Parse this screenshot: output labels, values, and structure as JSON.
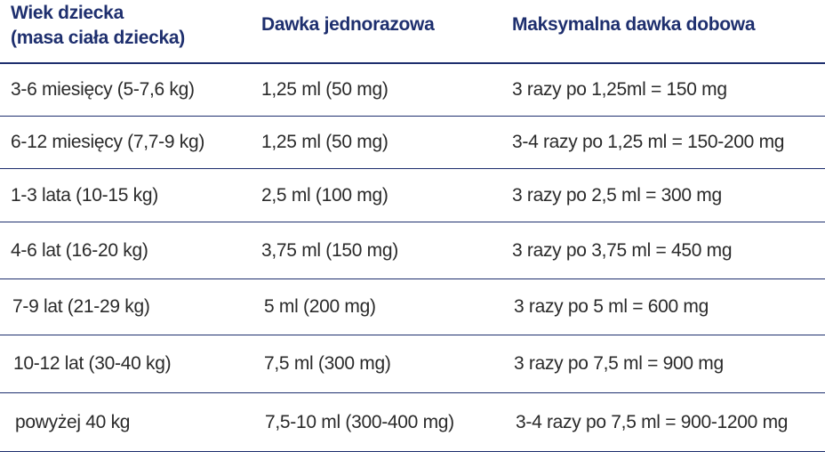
{
  "header": {
    "col1_line1": "Wiek dziecka",
    "col1_line2": "(masa ciała dziecka)",
    "col2": "Dawka jednorazowa",
    "col3": "Maksymalna dawka dobowa"
  },
  "rows": [
    {
      "age": "3-6 miesięcy (5-7,6 kg)",
      "dose": "1,25 ml (50 mg)",
      "max": "3 razy po 1,25ml = 150 mg"
    },
    {
      "age": "6-12 miesięcy (7,7-9 kg)",
      "dose": "1,25 ml (50 mg)",
      "max": "3-4 razy po 1,25 ml = 150-200 mg"
    },
    {
      "age": "1-3 lata (10-15 kg)",
      "dose": "2,5 ml (100 mg)",
      "max": "3 razy po 2,5 ml = 300 mg"
    },
    {
      "age": "4-6 lat (16-20 kg)",
      "dose": "3,75 ml (150 mg)",
      "max": "3 razy po 3,75 ml = 450 mg"
    },
    {
      "age": "7-9 lat (21-29 kg)",
      "dose": "5 ml (200 mg)",
      "max": "3 razy po 5 ml = 600 mg"
    },
    {
      "age": "10-12 lat (30-40 kg)",
      "dose": "7,5 ml (300 mg)",
      "max": "3 razy po 7,5 ml = 900 mg"
    },
    {
      "age": "powyżej 40 kg",
      "dose": "7,5-10 ml (300-400 mg)",
      "max": "3-4 razy po 7,5 ml = 900-1200 mg"
    }
  ],
  "colors": {
    "header_text": "#1e2f6e",
    "rule": "#1e2f6e",
    "body_text": "#2a2a2a"
  }
}
